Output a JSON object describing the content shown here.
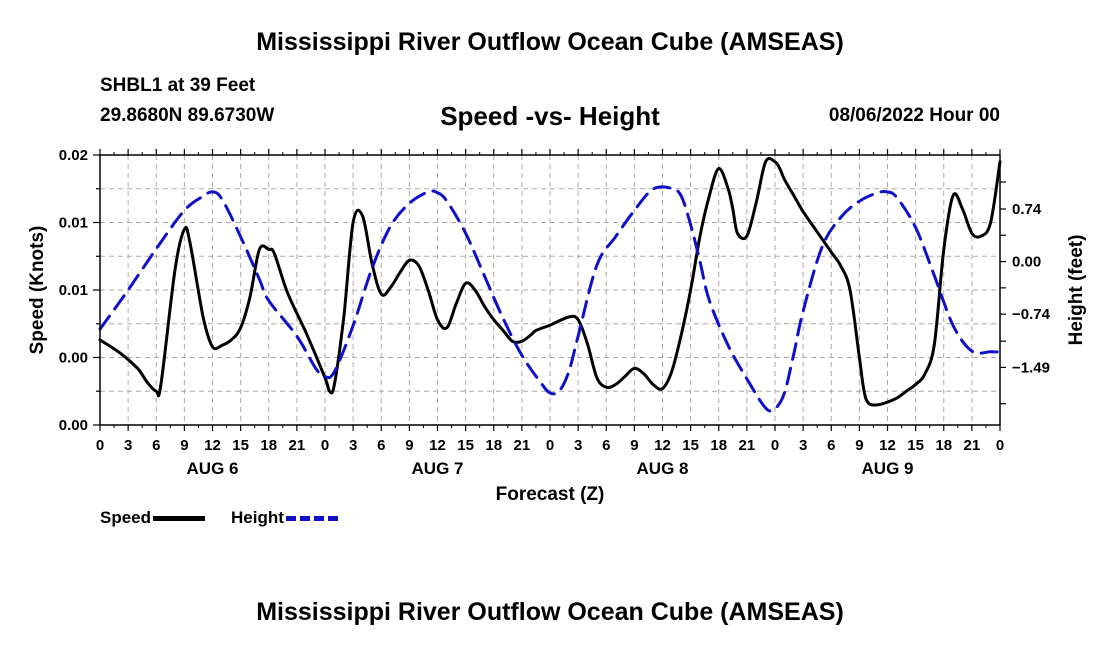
{
  "title": "Mississippi River Outflow Ocean Cube (AMSEAS)",
  "subtitle": "Speed -vs- Height",
  "station": "SHBL1 at 39 Feet",
  "coords": "29.8680N  89.6730W",
  "datetime": "08/06/2022 Hour 00",
  "legend": {
    "speed": "Speed",
    "height": "Height"
  },
  "colors": {
    "speed": "#000000",
    "height": "#1010c8",
    "grid": "#aaaaaa"
  },
  "chart_data": {
    "type": "line",
    "title": "Speed -vs- Height",
    "xlabel": "Forecast (Z)",
    "ylabel": "Speed (Knots)",
    "y2label": "Height (feet)",
    "xlim": [
      0,
      96
    ],
    "ylim": [
      0.0,
      0.02
    ],
    "y2lim": [
      -2.3,
      1.5
    ],
    "x_tick_step": 3,
    "x_tick_labels": [
      "0",
      "3",
      "6",
      "9",
      "12",
      "15",
      "18",
      "21",
      "0",
      "3",
      "6",
      "9",
      "12",
      "15",
      "18",
      "21",
      "0",
      "3",
      "6",
      "9",
      "12",
      "15",
      "18",
      "21",
      "0",
      "3",
      "6",
      "9",
      "12",
      "15",
      "18",
      "21",
      "0"
    ],
    "day_labels": [
      {
        "label": "AUG 6",
        "x": 12
      },
      {
        "label": "AUG 7",
        "x": 36
      },
      {
        "label": "AUG 8",
        "x": 60
      },
      {
        "label": "AUG 9",
        "x": 84
      }
    ],
    "y_ticks": [
      {
        "value": 0.0,
        "label": "0.00"
      },
      {
        "value": 0.005,
        "label": "0.00"
      },
      {
        "value": 0.01,
        "label": "0.01"
      },
      {
        "value": 0.015,
        "label": "0.01"
      },
      {
        "value": 0.02,
        "label": "0.02"
      }
    ],
    "y2_ticks": [
      {
        "value": 0.74,
        "label": "0.74"
      },
      {
        "value": 0.0,
        "label": "0.00"
      },
      {
        "value": -0.74,
        "label": "−0.74"
      },
      {
        "value": -1.49,
        "label": "−1.49"
      }
    ],
    "series": [
      {
        "name": "Speed",
        "axis": "left",
        "style": "solid",
        "x": [
          0,
          2,
          4,
          5,
          6,
          6.5,
          8,
          9,
          9.6,
          11,
          12,
          13,
          14,
          15,
          16,
          17,
          18,
          18.6,
          20,
          22,
          24,
          24.5,
          25,
          26,
          27,
          28,
          29,
          30,
          31,
          32,
          33,
          34,
          35,
          36,
          37,
          38,
          39,
          40,
          41,
          42,
          43,
          44,
          45,
          46,
          46.5,
          48,
          50,
          51,
          52,
          53,
          54,
          55,
          56,
          57,
          58,
          59,
          60,
          61,
          62,
          63,
          64,
          65,
          66,
          67,
          67.5,
          68,
          69,
          70,
          71,
          72,
          72.5,
          73,
          74,
          75,
          76,
          77,
          78,
          79,
          80,
          81,
          81.5,
          82,
          83,
          84,
          85,
          86,
          87,
          88,
          89,
          90,
          91,
          92,
          93,
          94,
          95,
          96
        ],
        "values": [
          0.0063,
          0.0054,
          0.0042,
          0.0032,
          0.0025,
          0.003,
          0.0115,
          0.0145,
          0.0135,
          0.008,
          0.0058,
          0.0059,
          0.0063,
          0.0072,
          0.0095,
          0.013,
          0.013,
          0.0127,
          0.0098,
          0.0068,
          0.0035,
          0.0025,
          0.003,
          0.008,
          0.015,
          0.0155,
          0.012,
          0.0097,
          0.0102,
          0.0113,
          0.0122,
          0.0118,
          0.01,
          0.0078,
          0.0072,
          0.009,
          0.0105,
          0.01,
          0.0088,
          0.0078,
          0.007,
          0.0062,
          0.0062,
          0.0067,
          0.007,
          0.0074,
          0.008,
          0.0078,
          0.006,
          0.0035,
          0.0028,
          0.003,
          0.0036,
          0.0042,
          0.0038,
          0.003,
          0.0027,
          0.004,
          0.0067,
          0.01,
          0.014,
          0.017,
          0.019,
          0.0175,
          0.016,
          0.0142,
          0.014,
          0.0165,
          0.0195,
          0.0195,
          0.019,
          0.0182,
          0.017,
          0.0158,
          0.0148,
          0.0138,
          0.0128,
          0.0118,
          0.01,
          0.005,
          0.0025,
          0.0016,
          0.0015,
          0.0017,
          0.002,
          0.0025,
          0.003,
          0.0038,
          0.006,
          0.013,
          0.017,
          0.016,
          0.0142,
          0.014,
          0.015,
          0.0195
        ]
      },
      {
        "name": "Height",
        "axis": "right",
        "style": "dashed",
        "x": [
          0,
          3,
          6,
          9,
          11,
          12,
          13,
          15,
          17,
          18,
          21,
          23,
          24,
          25,
          27,
          29,
          31,
          33,
          35,
          36,
          37,
          39,
          41,
          43,
          45,
          47,
          48,
          49,
          50,
          51,
          53,
          55,
          57,
          59,
          61,
          62,
          63,
          64,
          65,
          67,
          69,
          71,
          72,
          73,
          74,
          75,
          77,
          79,
          81,
          83,
          84,
          85,
          87,
          89,
          91,
          93,
          95,
          96
        ],
        "values": [
          -0.95,
          -0.4,
          0.18,
          0.72,
          0.92,
          0.98,
          0.88,
          0.35,
          -0.25,
          -0.55,
          -1.05,
          -1.5,
          -1.62,
          -1.55,
          -0.9,
          -0.1,
          0.5,
          0.82,
          0.98,
          0.97,
          0.85,
          0.4,
          -0.2,
          -0.8,
          -1.32,
          -1.7,
          -1.85,
          -1.82,
          -1.55,
          -1.05,
          -0.05,
          0.35,
          0.72,
          1.02,
          1.03,
          0.92,
          0.52,
          0.0,
          -0.55,
          -1.18,
          -1.65,
          -2.06,
          -2.07,
          -1.85,
          -1.3,
          -0.7,
          0.2,
          0.62,
          0.85,
          0.97,
          0.98,
          0.9,
          0.48,
          -0.2,
          -0.9,
          -1.26,
          -1.27,
          -1.27
        ]
      }
    ]
  }
}
